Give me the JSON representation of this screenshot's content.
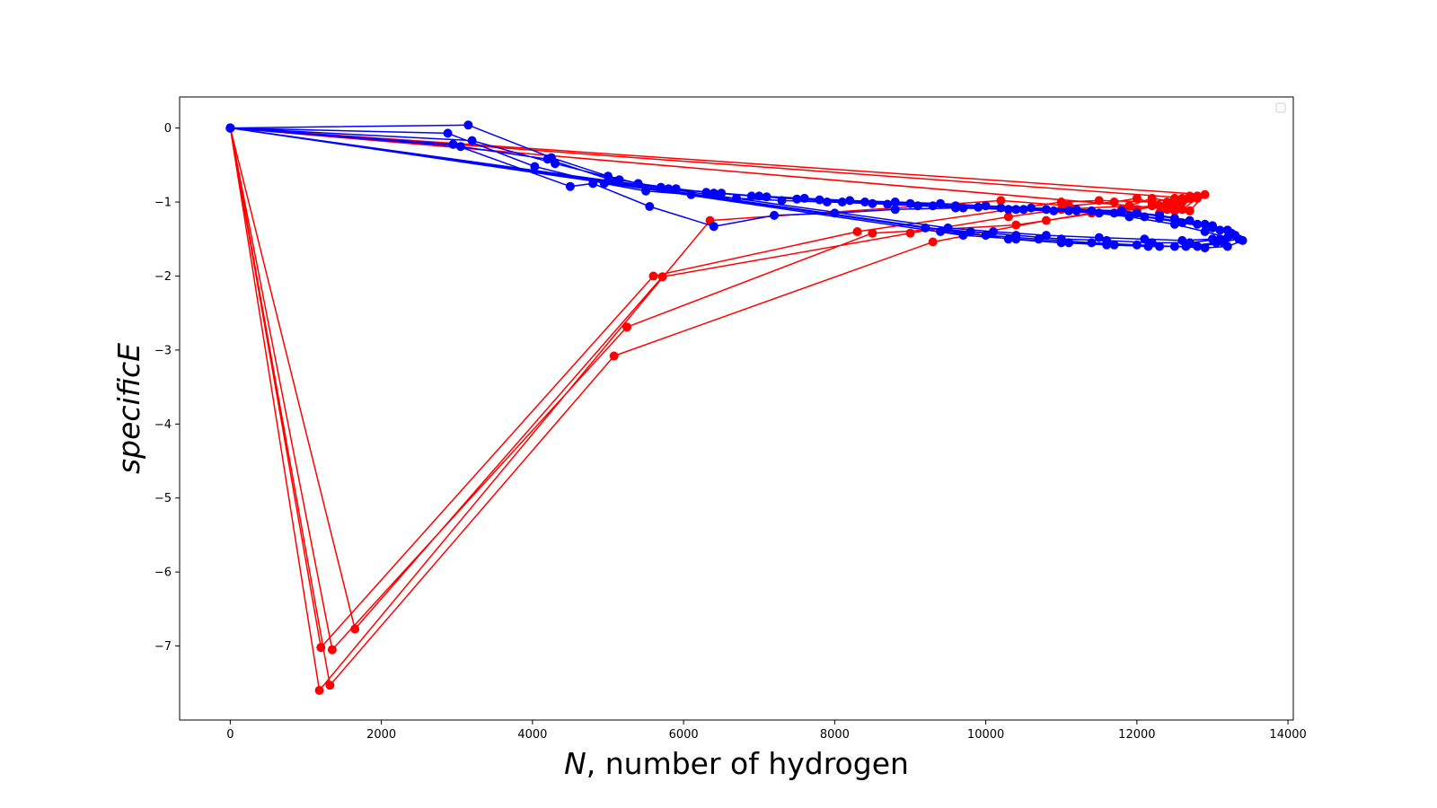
{
  "chart_data": {
    "type": "line",
    "title": "",
    "xlabel": {
      "italic": "N",
      "rest": ", number of hydrogen"
    },
    "ylabel": "specificE",
    "xlim": [
      -670,
      14070
    ],
    "ylim": [
      -8.0,
      0.42
    ],
    "xticks": [
      0,
      2000,
      4000,
      6000,
      8000,
      10000,
      12000,
      14000
    ],
    "yticks": [
      0,
      -1,
      -2,
      -3,
      -4,
      -5,
      -6,
      -7
    ],
    "ytick_labels": [
      "0",
      "−1",
      "−2",
      "−3",
      "−4",
      "−5",
      "−6",
      "−7"
    ],
    "grid": false,
    "legend": {
      "placement": "top-right",
      "entries": []
    },
    "series": [
      {
        "color": "#ff0000",
        "marker": "circle",
        "x": [
          0,
          1200,
          5600,
          8300,
          11000,
          11500,
          12200,
          12500,
          12700,
          12400,
          12600,
          12800,
          12300,
          12500,
          0,
          1350,
          5250,
          8500,
          10400,
          11800,
          12200,
          12400,
          12600,
          12300,
          12500,
          12700,
          0,
          1650,
          5720,
          9000,
          10300,
          11000,
          11900,
          12200,
          12500,
          12800,
          12400,
          12700,
          12900,
          0,
          1180,
          6350,
          10200,
          11100,
          11700,
          12000,
          12300,
          12600,
          12200,
          12500,
          12700,
          0,
          1320,
          5080,
          9300,
          10800,
          11400,
          12000,
          12300,
          12600,
          12800
        ],
        "y": [
          0,
          -7.02,
          -2.0,
          -1.4,
          -1.0,
          -0.98,
          -1.0,
          -0.95,
          -0.92,
          -1.05,
          -1.1,
          -0.95,
          -1.15,
          -1.1,
          0,
          -7.05,
          -2.69,
          -1.42,
          -1.31,
          -1.1,
          -1.05,
          -1.0,
          -0.95,
          -1.15,
          -1.1,
          -1.12,
          0,
          -6.77,
          -2.01,
          -1.42,
          -1.2,
          -1.1,
          -1.05,
          -0.95,
          -1.0,
          -0.92,
          -1.1,
          -1.12,
          -0.9,
          0,
          -7.6,
          -1.25,
          -0.98,
          -1.05,
          -1.0,
          -0.95,
          -1.05,
          -1.1,
          -1.0,
          -1.12,
          -0.95,
          0,
          -7.53,
          -3.08,
          -1.54,
          -1.25,
          -1.15,
          -1.1,
          -1.05,
          -1.0,
          -0.92
        ]
      },
      {
        "color": "#0000ff",
        "marker": "circle",
        "x": [
          0,
          3150,
          4250,
          5000,
          5400,
          5900,
          6400,
          7000,
          7600,
          8200,
          8800,
          9400,
          10000,
          10600,
          11200,
          11800,
          12300,
          12700,
          13000,
          13200,
          13300,
          13000,
          12600,
          12100,
          11500,
          10800,
          10100,
          9500,
          0,
          2880,
          4030,
          4950,
          5500,
          6100,
          6700,
          7300,
          7900,
          8500,
          9100,
          9700,
          10300,
          10900,
          11500,
          12100,
          12600,
          13000,
          13250,
          13100,
          12700,
          12200,
          11600,
          11000,
          10400,
          9800,
          9200,
          0,
          3200,
          4300,
          5150,
          5700,
          6300,
          6900,
          7500,
          8100,
          8700,
          9300,
          9900,
          10500,
          11100,
          11700,
          12300,
          12800,
          13100,
          13300,
          13150,
          12800,
          12300,
          11700,
          11100,
          10400,
          9700,
          0,
          2950,
          4500,
          4800,
          5550,
          6400,
          7200,
          8000,
          8800,
          9600,
          10400,
          11200,
          11900,
          12500,
          12900,
          13200,
          13350,
          13050,
          12650,
          12150,
          11600,
          11000,
          10300,
          0,
          3050,
          4200,
          5100,
          5800,
          6500,
          7100,
          7800,
          8400,
          9000,
          9600,
          10200,
          10800,
          11400,
          12000,
          12500,
          12900,
          13200,
          13400,
          13200,
          12900,
          12500,
          12000,
          11400,
          10700,
          10000,
          9400
        ],
        "y": [
          0,
          0.04,
          -0.4,
          -0.65,
          -0.75,
          -0.82,
          -0.88,
          -0.92,
          -0.95,
          -0.98,
          -1.0,
          -1.02,
          -1.05,
          -1.08,
          -1.1,
          -1.12,
          -1.18,
          -1.25,
          -1.32,
          -1.38,
          -1.45,
          -1.5,
          -1.52,
          -1.5,
          -1.48,
          -1.45,
          -1.4,
          -1.35,
          0,
          -0.07,
          -0.52,
          -0.75,
          -0.85,
          -0.9,
          -0.95,
          -0.98,
          -1.0,
          -1.02,
          -1.05,
          -1.08,
          -1.1,
          -1.12,
          -1.15,
          -1.2,
          -1.28,
          -1.35,
          -1.42,
          -1.5,
          -1.55,
          -1.55,
          -1.52,
          -1.5,
          -1.45,
          -1.4,
          -1.35,
          0,
          -0.17,
          -0.48,
          -0.7,
          -0.8,
          -0.87,
          -0.92,
          -0.96,
          -1.0,
          -1.03,
          -1.05,
          -1.07,
          -1.1,
          -1.12,
          -1.15,
          -1.22,
          -1.3,
          -1.38,
          -1.45,
          -1.55,
          -1.6,
          -1.6,
          -1.58,
          -1.55,
          -1.5,
          -1.45,
          0,
          -0.22,
          -0.79,
          -0.75,
          -1.06,
          -1.33,
          -1.18,
          -1.15,
          -1.1,
          -1.08,
          -1.1,
          -1.12,
          -1.2,
          -1.3,
          -1.4,
          -1.48,
          -1.5,
          -1.55,
          -1.6,
          -1.6,
          -1.58,
          -1.55,
          -1.5,
          0,
          -0.25,
          -0.42,
          -0.72,
          -0.82,
          -0.88,
          -0.93,
          -0.97,
          -1.0,
          -1.02,
          -1.05,
          -1.08,
          -1.1,
          -1.12,
          -1.15,
          -1.22,
          -1.3,
          -1.38,
          -1.52,
          -1.6,
          -1.62,
          -1.6,
          -1.58,
          -1.55,
          -1.5,
          -1.45,
          -1.4
        ]
      }
    ]
  }
}
